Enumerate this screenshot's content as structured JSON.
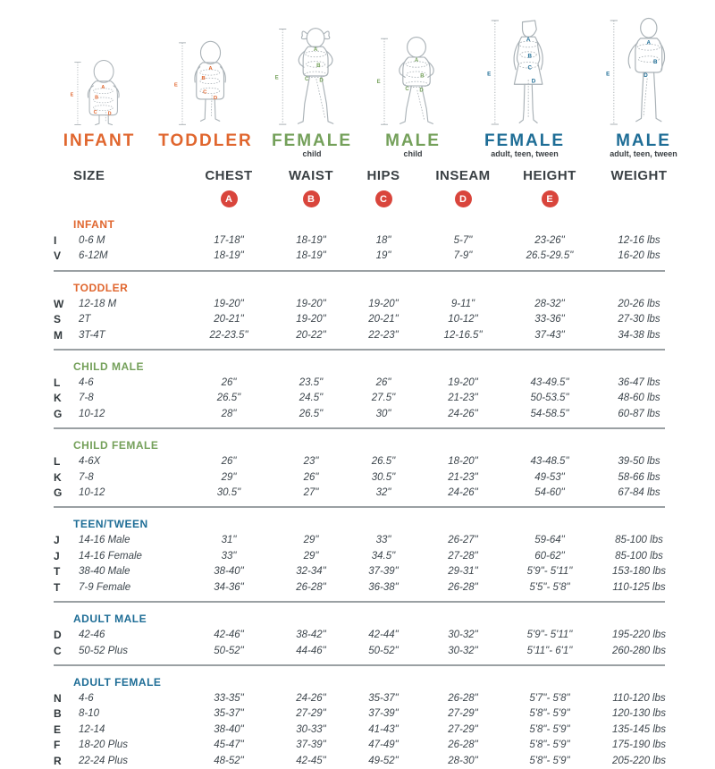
{
  "palette": {
    "orange": "#e0662e",
    "green": "#74a05a",
    "blue": "#1e6d96",
    "marker_red": "#d9453c"
  },
  "figures": [
    {
      "id": "infant",
      "label": "INFANT",
      "sublabel": "",
      "color": "#e0662e"
    },
    {
      "id": "toddler",
      "label": "TODDLER",
      "sublabel": "",
      "color": "#e0662e"
    },
    {
      "id": "female-child",
      "label": "FEMALE",
      "sublabel": "child",
      "color": "#74a05a"
    },
    {
      "id": "male-child",
      "label": "MALE",
      "sublabel": "child",
      "color": "#74a05a"
    },
    {
      "id": "female-adult",
      "label": "FEMALE",
      "sublabel": "adult, teen, tween",
      "color": "#1e6d96"
    },
    {
      "id": "male-adult",
      "label": "MALE",
      "sublabel": "adult, teen, tween",
      "color": "#1e6d96"
    }
  ],
  "table": {
    "headers": [
      "SIZE",
      "CHEST",
      "WAIST",
      "HIPS",
      "INSEAM",
      "HEIGHT",
      "WEIGHT"
    ],
    "markers": [
      "A",
      "B",
      "C",
      "D",
      "E"
    ],
    "marker_color": "#d9453c",
    "sections": [
      {
        "title": "INFANT",
        "color": "#e0662e",
        "divider": true,
        "rows": [
          {
            "code": "I",
            "size": "0-6 M",
            "cells": [
              "17-18\"",
              "18-19\"",
              "18\"",
              "5-7\"",
              "23-26\"",
              "12-16 lbs"
            ]
          },
          {
            "code": "V",
            "size": "6-12M",
            "cells": [
              "18-19\"",
              "18-19\"",
              "19\"",
              "7-9\"",
              "26.5-29.5\"",
              "16-20 lbs"
            ]
          }
        ]
      },
      {
        "title": "TODDLER",
        "color": "#e0662e",
        "divider": true,
        "rows": [
          {
            "code": "W",
            "size": "12-18 M",
            "cells": [
              "19-20\"",
              "19-20\"",
              "19-20\"",
              "9-11\"",
              "28-32\"",
              "20-26 lbs"
            ]
          },
          {
            "code": "S",
            "size": "2T",
            "cells": [
              "20-21\"",
              "19-20\"",
              "20-21\"",
              "10-12\"",
              "33-36\"",
              "27-30 lbs"
            ]
          },
          {
            "code": "M",
            "size": "3T-4T",
            "cells": [
              "22-23.5\"",
              "20-22\"",
              "22-23\"",
              "12-16.5\"",
              "37-43\"",
              "34-38 lbs"
            ]
          }
        ]
      },
      {
        "title": "CHILD MALE",
        "color": "#74a05a",
        "divider": true,
        "rows": [
          {
            "code": "L",
            "size": "4-6",
            "cells": [
              "26\"",
              "23.5\"",
              "26\"",
              "19-20\"",
              "43-49.5\"",
              "36-47 lbs"
            ]
          },
          {
            "code": "K",
            "size": "7-8",
            "cells": [
              "26.5\"",
              "24.5\"",
              "27.5\"",
              "21-23\"",
              "50-53.5\"",
              "48-60 lbs"
            ]
          },
          {
            "code": "G",
            "size": "10-12",
            "cells": [
              "28\"",
              "26.5\"",
              "30\"",
              "24-26\"",
              "54-58.5\"",
              "60-87 lbs"
            ]
          }
        ]
      },
      {
        "title": "CHILD FEMALE",
        "color": "#74a05a",
        "divider": true,
        "rows": [
          {
            "code": "L",
            "size": "4-6X",
            "cells": [
              "26\"",
              "23\"",
              "26.5\"",
              "18-20\"",
              "43-48.5\"",
              "39-50 lbs"
            ]
          },
          {
            "code": "K",
            "size": "7-8",
            "cells": [
              "29\"",
              "26\"",
              "30.5\"",
              "21-23\"",
              "49-53\"",
              "58-66 lbs"
            ]
          },
          {
            "code": "G",
            "size": "10-12",
            "cells": [
              "30.5\"",
              "27\"",
              "32\"",
              "24-26\"",
              "54-60\"",
              "67-84 lbs"
            ]
          }
        ]
      },
      {
        "title": "TEEN/TWEEN",
        "color": "#1e6d96",
        "divider": true,
        "rows": [
          {
            "code": "J",
            "size": "14-16 Male",
            "cells": [
              "31\"",
              "29\"",
              "33\"",
              "26-27\"",
              "59-64\"",
              "85-100 lbs"
            ]
          },
          {
            "code": "J",
            "size": "14-16 Female",
            "cells": [
              "33\"",
              "29\"",
              "34.5\"",
              "27-28\"",
              "60-62\"",
              "85-100 lbs"
            ]
          },
          {
            "code": "T",
            "size": "38-40 Male",
            "cells": [
              "38-40\"",
              "32-34\"",
              "37-39\"",
              "29-31\"",
              "5'9\"- 5'11\"",
              "153-180 lbs"
            ]
          },
          {
            "code": "T",
            "size": "7-9 Female",
            "cells": [
              "34-36\"",
              "26-28\"",
              "36-38\"",
              "26-28\"",
              "5'5\"- 5'8\"",
              "110-125 lbs"
            ]
          }
        ]
      },
      {
        "title": "ADULT MALE",
        "color": "#1e6d96",
        "divider": true,
        "rows": [
          {
            "code": "D",
            "size": "42-46",
            "cells": [
              "42-46\"",
              "38-42\"",
              "42-44\"",
              "30-32\"",
              "5'9\"- 5'11\"",
              "195-220 lbs"
            ]
          },
          {
            "code": "C",
            "size": "50-52 Plus",
            "cells": [
              "50-52\"",
              "44-46\"",
              "50-52\"",
              "30-32\"",
              "5'11\"- 6'1\"",
              "260-280 lbs"
            ]
          }
        ]
      },
      {
        "title": "ADULT FEMALE",
        "color": "#1e6d96",
        "divider": false,
        "rows": [
          {
            "code": "N",
            "size": "4-6",
            "cells": [
              "33-35\"",
              "24-26\"",
              "35-37\"",
              "26-28\"",
              "5'7\"- 5'8\"",
              "110-120 lbs"
            ]
          },
          {
            "code": "B",
            "size": "8-10",
            "cells": [
              "35-37\"",
              "27-29\"",
              "37-39\"",
              "27-29\"",
              "5'8\"- 5'9\"",
              "120-130 lbs"
            ]
          },
          {
            "code": "E",
            "size": "12-14",
            "cells": [
              "38-40\"",
              "30-33\"",
              "41-43\"",
              "27-29\"",
              "5'8\"- 5'9\"",
              "135-145 lbs"
            ]
          },
          {
            "code": "F",
            "size": "18-20 Plus",
            "cells": [
              "45-47\"",
              "37-39\"",
              "47-49\"",
              "26-28\"",
              "5'8\"- 5'9\"",
              "175-190 lbs"
            ]
          },
          {
            "code": "R",
            "size": "22-24 Plus",
            "cells": [
              "48-52\"",
              "42-45\"",
              "49-52\"",
              "28-30\"",
              "5'8\"- 5'9\"",
              "205-220 lbs"
            ]
          }
        ]
      }
    ]
  }
}
